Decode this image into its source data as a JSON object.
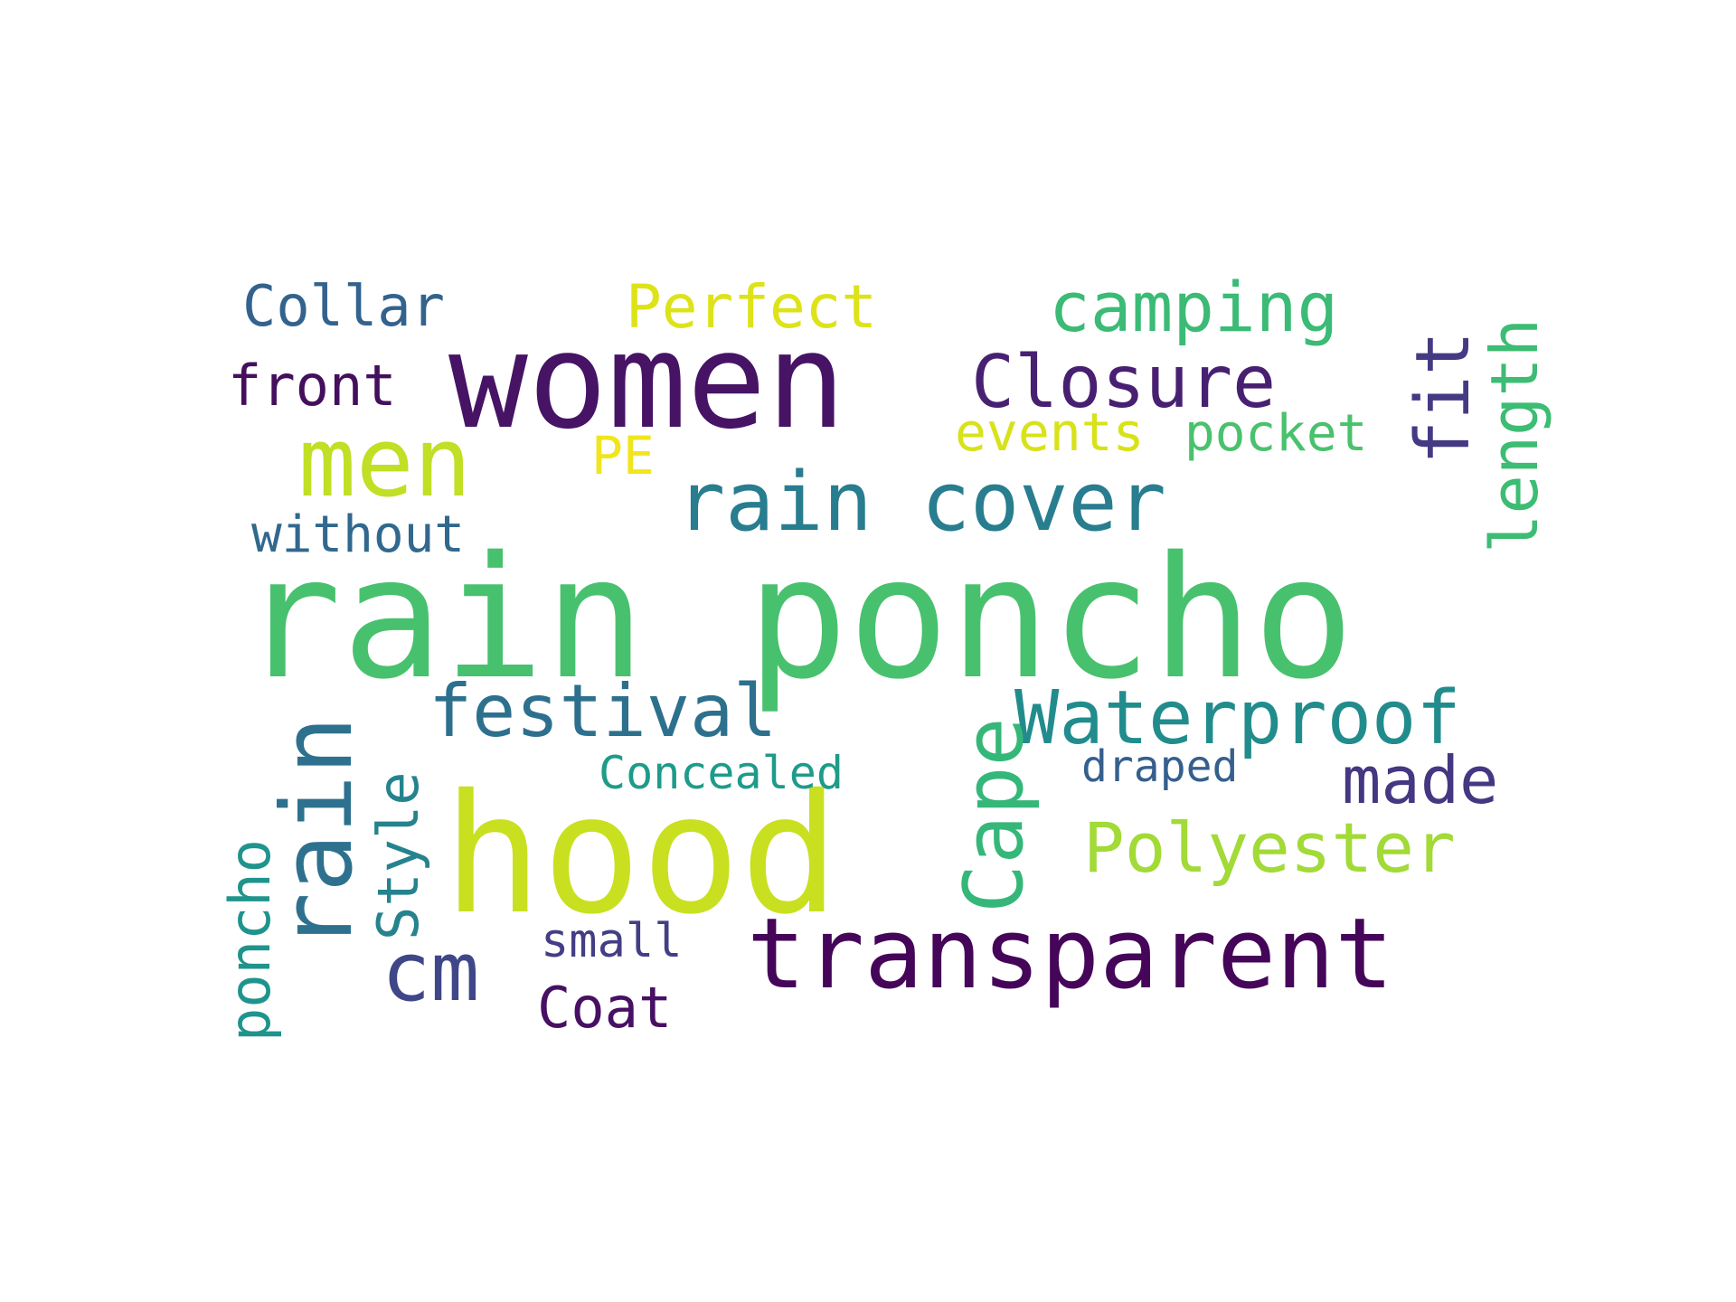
{
  "words": [
    {
      "text": "rain poncho",
      "color": "#48c16e"
    },
    {
      "text": "women",
      "color": "#471365"
    },
    {
      "text": "hood",
      "color": "#c8e020"
    },
    {
      "text": "transparent",
      "color": "#450559"
    },
    {
      "text": "rain cover",
      "color": "#287d8e"
    },
    {
      "text": "men",
      "color": "#c0df25"
    },
    {
      "text": "rain",
      "color": "#2d718e"
    },
    {
      "text": "Closure",
      "color": "#482071"
    },
    {
      "text": "Waterproof",
      "color": "#228c8d"
    },
    {
      "text": "festival",
      "color": "#2d708e"
    },
    {
      "text": "camping",
      "color": "#3bbb75"
    },
    {
      "text": "Perfect",
      "color": "#dde318"
    },
    {
      "text": "Collar",
      "color": "#33638d"
    },
    {
      "text": "front",
      "color": "#440f5c"
    },
    {
      "text": "Polyester",
      "color": "#a2da37"
    },
    {
      "text": "Cape",
      "color": "#35b779"
    },
    {
      "text": "fit",
      "color": "#443a83"
    },
    {
      "text": "length",
      "color": "#3dbc74"
    },
    {
      "text": "events",
      "color": "#d8e219"
    },
    {
      "text": "pocket",
      "color": "#4ac16d"
    },
    {
      "text": "PE",
      "color": "#f1e51d"
    },
    {
      "text": "without",
      "color": "#31688e"
    },
    {
      "text": "cm",
      "color": "#3f4788"
    },
    {
      "text": "made",
      "color": "#453781"
    },
    {
      "text": "Style",
      "color": "#25838e"
    },
    {
      "text": "poncho",
      "color": "#1f948c"
    },
    {
      "text": "Concealed",
      "color": "#1e9b8a"
    },
    {
      "text": "draped",
      "color": "#355f8d"
    },
    {
      "text": "small",
      "color": "#433e85"
    },
    {
      "text": "Coat",
      "color": "#471063"
    }
  ]
}
